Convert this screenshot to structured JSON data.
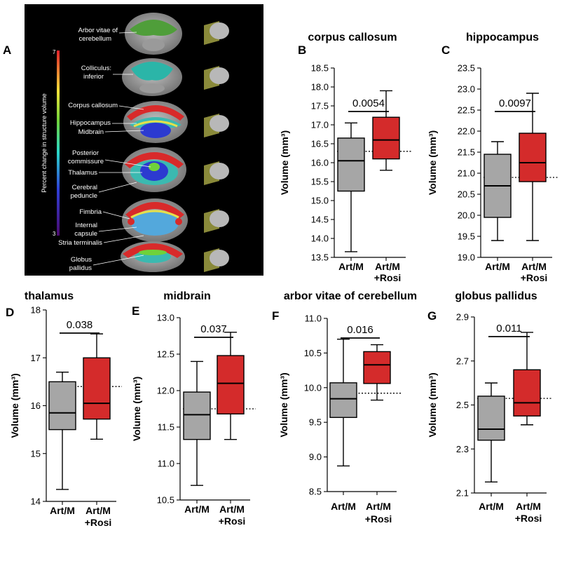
{
  "panel_a": {
    "letter": "A",
    "colorbar_label": "Percent change in structure volume",
    "colorbar_max": "7",
    "colorbar_min": "3",
    "labels": [
      "Arbor vitae of",
      "cerebellum",
      "Colliculus:",
      "inferior",
      "Corpus callosum",
      "Hippocampus",
      "Midbrain",
      "Posterior",
      "commissure",
      "Thalamus",
      "Cerebral",
      "peduncle",
      "Fimbria",
      "Internal",
      "capsule",
      "Stria terminalis",
      "Globus",
      "pallidus"
    ]
  },
  "chart_data": [
    {
      "letter": "B",
      "type": "box",
      "title": "corpus callosum",
      "ylabel": "Volume (mm³)",
      "ylim": [
        13.5,
        18.5
      ],
      "yticks": [
        "18.5",
        "18.0",
        "17.5",
        "17.0",
        "16.5",
        "16.0",
        "15.5",
        "15.0",
        "14.5",
        "14.0",
        "13.5"
      ],
      "categories": [
        "Art/M",
        "Art/M +Rosi"
      ],
      "reference_line": 16.3,
      "p_value": "0.0054",
      "boxes": [
        {
          "min": 13.65,
          "q1": 15.25,
          "median": 16.05,
          "q3": 16.65,
          "max": 17.05,
          "color": "#a6a6a6"
        },
        {
          "min": 15.8,
          "q1": 16.1,
          "median": 16.6,
          "q3": 17.2,
          "max": 17.9,
          "color": "#d42b2b"
        }
      ]
    },
    {
      "letter": "C",
      "type": "box",
      "title": "hippocampus",
      "ylabel": "Volume (mm³)",
      "ylim": [
        19.0,
        23.5
      ],
      "yticks": [
        "23.5",
        "23.0",
        "22.5",
        "22.0",
        "21.5",
        "21.0",
        "20.5",
        "20.0",
        "19.5",
        "19.0"
      ],
      "categories": [
        "Art/M",
        "Art/M +Rosi"
      ],
      "reference_line": 20.9,
      "p_value": "0.0097",
      "boxes": [
        {
          "min": 19.4,
          "q1": 19.95,
          "median": 20.7,
          "q3": 21.45,
          "max": 21.75,
          "color": "#a6a6a6"
        },
        {
          "min": 19.4,
          "q1": 20.8,
          "median": 21.25,
          "q3": 21.95,
          "max": 22.9,
          "color": "#d42b2b"
        }
      ]
    },
    {
      "letter": "D",
      "type": "box",
      "title": "thalamus",
      "ylabel": "Volume (mm³)",
      "ylim": [
        14,
        18
      ],
      "yticks": [
        "18",
        "17",
        "16",
        "15",
        "14"
      ],
      "categories": [
        "Art/M",
        "Art/M +Rosi"
      ],
      "reference_line": 16.4,
      "p_value": "0.038",
      "boxes": [
        {
          "min": 14.25,
          "q1": 15.5,
          "median": 15.85,
          "q3": 16.5,
          "max": 16.7,
          "color": "#a6a6a6"
        },
        {
          "min": 15.3,
          "q1": 15.72,
          "median": 16.05,
          "q3": 17.0,
          "max": 17.5,
          "color": "#d42b2b"
        }
      ]
    },
    {
      "letter": "E",
      "type": "box",
      "title": "midbrain",
      "ylabel": "Volume (mm³)",
      "ylim": [
        10.5,
        13.0
      ],
      "yticks": [
        "13.0",
        "12.5",
        "12.0",
        "11.5",
        "11.0",
        "10.5"
      ],
      "categories": [
        "Art/M",
        "Art/M +Rosi"
      ],
      "reference_line": 11.75,
      "p_value": "0.037",
      "boxes": [
        {
          "min": 10.7,
          "q1": 11.33,
          "median": 11.67,
          "q3": 11.98,
          "max": 12.4,
          "color": "#a6a6a6"
        },
        {
          "min": 11.33,
          "q1": 11.68,
          "median": 12.1,
          "q3": 12.48,
          "max": 12.8,
          "color": "#d42b2b"
        }
      ]
    },
    {
      "letter": "F",
      "type": "box",
      "title": "arbor vitae of cerebellum",
      "ylabel": "Volume (mm³)",
      "ylim": [
        8.5,
        11.0
      ],
      "yticks": [
        "11.0",
        "10.5",
        "10.0",
        "9.5",
        "9.0",
        "8.5"
      ],
      "categories": [
        "Art/M",
        "Art/M +Rosi"
      ],
      "reference_line": 9.92,
      "p_value": "0.016",
      "boxes": [
        {
          "min": 8.87,
          "q1": 9.57,
          "median": 9.84,
          "q3": 10.07,
          "max": 10.7,
          "color": "#a6a6a6"
        },
        {
          "min": 9.82,
          "q1": 10.06,
          "median": 10.33,
          "q3": 10.52,
          "max": 10.62,
          "color": "#d42b2b"
        }
      ]
    },
    {
      "letter": "G",
      "type": "box",
      "title": "globus pallidus",
      "ylabel": "Volume (mm³)",
      "ylim": [
        2.1,
        2.9
      ],
      "yticks": [
        "2.9",
        "2.7",
        "2.5",
        "2.3",
        "2.1"
      ],
      "categories": [
        "Art/M",
        "Art/M +Rosi"
      ],
      "reference_line": 2.53,
      "p_value": "0.011",
      "boxes": [
        {
          "min": 2.15,
          "q1": 2.34,
          "median": 2.39,
          "q3": 2.54,
          "max": 2.6,
          "color": "#a6a6a6"
        },
        {
          "min": 2.41,
          "q1": 2.45,
          "median": 2.51,
          "q3": 2.66,
          "max": 2.83,
          "color": "#d42b2b"
        }
      ]
    }
  ]
}
